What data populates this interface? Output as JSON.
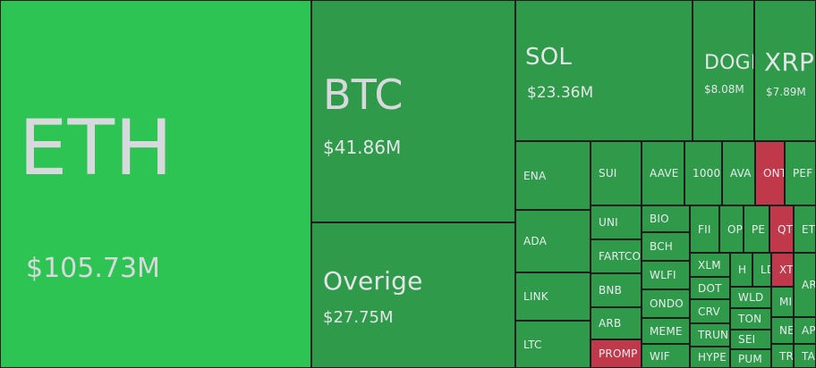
{
  "colors": {
    "gain": "#2e9a4a",
    "gain_strong": "#2ec453",
    "loss": "#c0394a",
    "gap": "#1c1c1c"
  },
  "tiles": {
    "ETH": {
      "symbol": "ETH",
      "value": "$105.73M"
    },
    "BTC": {
      "symbol": "BTC",
      "value": "$41.86M"
    },
    "OVG": {
      "symbol": "Overige",
      "value": "$27.75M"
    },
    "SOL": {
      "symbol": "SOL",
      "value": "$23.36M"
    },
    "DOGE": {
      "symbol": "DOGE",
      "value": "$8.08M"
    },
    "XRP": {
      "symbol": "XRP",
      "value": "$7.89M"
    },
    "ENA": {
      "symbol": "ENA"
    },
    "ADA": {
      "symbol": "ADA"
    },
    "LINK": {
      "symbol": "LINK"
    },
    "LTC": {
      "symbol": "LTC"
    },
    "SUI": {
      "symbol": "SUI"
    },
    "AAVE": {
      "symbol": "AAVE"
    },
    "1000": {
      "symbol": "1000"
    },
    "AVA": {
      "symbol": "AVA"
    },
    "ONT": {
      "symbol": "ONT"
    },
    "PEF": {
      "symbol": "PEF"
    },
    "UNI": {
      "symbol": "UNI"
    },
    "FARTCO": {
      "symbol": "FARTCO"
    },
    "BNB": {
      "symbol": "BNB"
    },
    "ARB": {
      "symbol": "ARB"
    },
    "PROMP": {
      "symbol": "PROMP"
    },
    "BIO": {
      "symbol": "BIO"
    },
    "BCH": {
      "symbol": "BCH"
    },
    "WLFI": {
      "symbol": "WLFI"
    },
    "ONDO": {
      "symbol": "ONDO"
    },
    "MEME": {
      "symbol": "MEME"
    },
    "WIF": {
      "symbol": "WIF"
    },
    "FI": {
      "symbol": "FII"
    },
    "OP": {
      "symbol": "OP"
    },
    "PE": {
      "symbol": "PE"
    },
    "QT": {
      "symbol": "QT"
    },
    "ET": {
      "symbol": "ET"
    },
    "XLM": {
      "symbol": "XLM"
    },
    "DOT": {
      "symbol": "DOT"
    },
    "CRV": {
      "symbol": "CRV"
    },
    "TRUN": {
      "symbol": "TRUN"
    },
    "HYPE": {
      "symbol": "HYPE"
    },
    "H": {
      "symbol": "H"
    },
    "LD": {
      "symbol": "LD"
    },
    "XT": {
      "symbol": "XT"
    },
    "WLD": {
      "symbol": "WLD"
    },
    "TON": {
      "symbol": "TON"
    },
    "SEI": {
      "symbol": "SEI"
    },
    "PUM": {
      "symbol": "PUM"
    },
    "MI": {
      "symbol": "MI"
    },
    "AR": {
      "symbol": "AR"
    },
    "NE": {
      "symbol": "NE"
    },
    "AP": {
      "symbol": "AP"
    },
    "TR": {
      "symbol": "TR"
    },
    "TA": {
      "symbol": "TA"
    }
  }
}
